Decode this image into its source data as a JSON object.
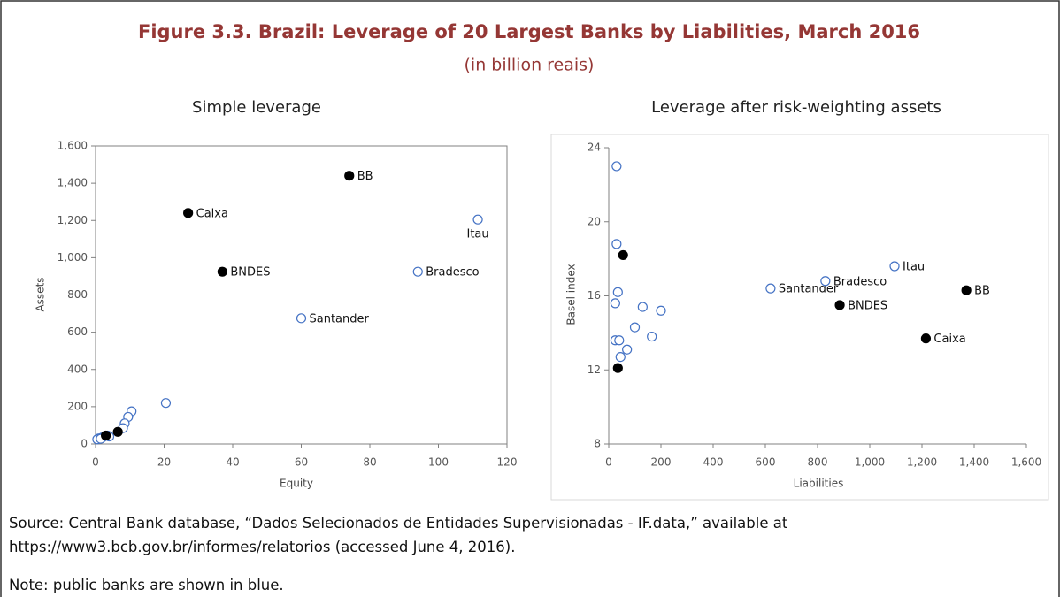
{
  "figure": {
    "title": "Figure 3.3. Brazil: Leverage of 20 Largest Banks by Liabilities, March 2016",
    "subtitle": "(in billion reais)",
    "source": "Source: Central Bank database, “Dados Selecionados de Entidades Supervisionadas - IF.data,” available at https://www3.bcb.gov.br/informes/relatorios (accessed June 4, 2016).",
    "note": "Note: public banks are shown in blue."
  },
  "chart_data": [
    {
      "type": "scatter",
      "title": "Simple leverage",
      "x_label": "Equity",
      "y_label": "Assets",
      "xlim": [
        0,
        120
      ],
      "xticks": [
        0,
        20,
        40,
        60,
        80,
        100,
        120
      ],
      "ylim": [
        0,
        1600
      ],
      "yticks": [
        0,
        200,
        400,
        600,
        800,
        {
          "value": 1000,
          "label": "1,000"
        },
        {
          "value": 1200,
          "label": "1,200"
        },
        {
          "value": 1400,
          "label": "1,400"
        },
        {
          "value": 1600,
          "label": "1,600"
        }
      ],
      "plot_border": true,
      "chart_border": false,
      "series": [
        {
          "color": "#4472c4",
          "filled": false,
          "x": [
            111.5,
            94,
            60,
            20.5,
            10.5,
            9.5,
            8.5,
            8,
            3.5,
            2,
            1,
            0.5,
            4,
            1.5
          ],
          "values": [
            1205,
            925,
            675,
            220,
            175,
            145,
            110,
            85,
            45,
            35,
            30,
            25,
            40,
            28
          ],
          "labels": [
            "Itau",
            "Bradesco",
            "Santander",
            null,
            null,
            null,
            null,
            null,
            null,
            null,
            null,
            null,
            null,
            null
          ]
        },
        {
          "color": "#000000",
          "filled": true,
          "x": [
            74,
            27,
            37,
            6.5,
            3
          ],
          "values": [
            1440,
            1240,
            925,
            65,
            45
          ],
          "labels": [
            "BB",
            "Caixa",
            "BNDES",
            null,
            null
          ]
        }
      ]
    },
    {
      "type": "scatter",
      "title": "Leverage after risk-weighting assets",
      "x_label": "Liabilities",
      "y_label": "Basel index",
      "xlim": [
        0,
        1600
      ],
      "xticks": [
        0,
        200,
        400,
        600,
        800,
        {
          "value": 1000,
          "label": "1,000"
        },
        {
          "value": 1200,
          "label": "1,200"
        },
        {
          "value": 1400,
          "label": "1,400"
        },
        {
          "value": 1600,
          "label": "1,600"
        }
      ],
      "ylim": [
        8,
        24
      ],
      "yticks": [
        8,
        12,
        16,
        20,
        24
      ],
      "plot_border": false,
      "chart_border": true,
      "series": [
        {
          "color": "#4472c4",
          "filled": false,
          "x": [
            30,
            30,
            35,
            25,
            130,
            200,
            100,
            165,
            25,
            40,
            70,
            45,
            620,
            830,
            1095
          ],
          "values": [
            23.0,
            18.8,
            16.2,
            15.6,
            15.4,
            15.2,
            14.3,
            13.8,
            13.6,
            13.6,
            13.1,
            12.7,
            16.4,
            16.8,
            17.6
          ],
          "labels": [
            null,
            null,
            null,
            null,
            null,
            null,
            null,
            null,
            null,
            null,
            null,
            null,
            "Santander",
            "Bradesco",
            "Itau"
          ]
        },
        {
          "color": "#000000",
          "filled": true,
          "x": [
            55,
            35,
            885,
            1370,
            1215
          ],
          "values": [
            18.2,
            12.1,
            15.5,
            16.3,
            13.7
          ],
          "labels": [
            null,
            null,
            "BNDES",
            "BB",
            "Caixa"
          ]
        }
      ]
    }
  ]
}
